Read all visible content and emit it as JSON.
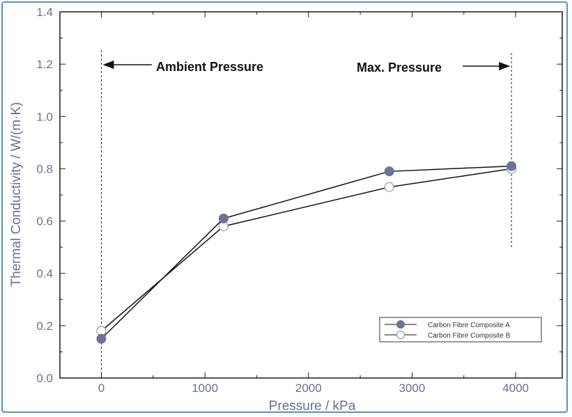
{
  "chart_data": {
    "type": "line",
    "title": "",
    "xlabel": "Pressure / kPa",
    "ylabel": "Thermal Conductivity / W/(m·K)",
    "xlim": [
      -400,
      4450
    ],
    "ylim": [
      0.0,
      1.4
    ],
    "x_ticks": [
      "0",
      "1000",
      "2000",
      "3000",
      "4000"
    ],
    "y_ticks": [
      "0.0",
      "0.2",
      "0.4",
      "0.6",
      "0.8",
      "1.0",
      "1.2",
      "1.4"
    ],
    "grid": false,
    "legend_position": "bottom-right",
    "series": [
      {
        "name": "Carbon Fibre Composite A",
        "marker": "filled-circle",
        "color": "#6b7398",
        "x": [
          0,
          1180,
          2780,
          3960
        ],
        "y": [
          0.15,
          0.61,
          0.79,
          0.81
        ]
      },
      {
        "name": "Carbon Fibre Composite B",
        "marker": "open-circle",
        "color": "#ffffff",
        "x": [
          0,
          1180,
          2780,
          3960
        ],
        "y": [
          0.18,
          0.58,
          0.73,
          0.8
        ]
      }
    ],
    "annotations": [
      {
        "text": "Ambient Pressure",
        "x": 0,
        "arrow": "left"
      },
      {
        "text": "Max. Pressure",
        "x": 3960,
        "arrow": "right"
      }
    ],
    "colors": {
      "axis_text": "#6a6f93",
      "frame": "#5b8fc6",
      "line": "#111111"
    }
  }
}
